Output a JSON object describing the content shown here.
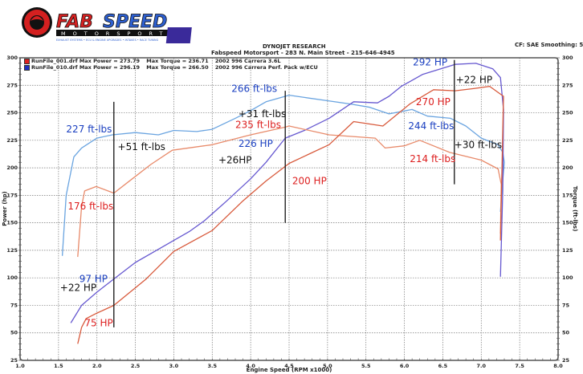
{
  "logo": {
    "brand": "FABSPEED",
    "sub": "MOTORSPORT",
    "tagline": "EXHAUST SYSTEMS • ECU & ENGINE UPGRADES • INTAKES • RACE TUNING"
  },
  "header": {
    "title": "DYNOJET RESEARCH",
    "subtitle": "Fabspeed Motorsport - 283 N. Main Street - 215-646-4945",
    "settings": "CF: SAE  Smoothing: 5"
  },
  "legend": [
    {
      "file": "RunFile_001.drf",
      "max_power": "Max Power = 273.79",
      "max_torque": "Max Torque = 236.71",
      "desc": "2002 996 Carrera 3.6L",
      "color": "#e02020"
    },
    {
      "file": "RunFile_010.drf",
      "max_power": "Max Power = 296.19",
      "max_torque": "Max Torque = 266.50",
      "desc": "2002 996 Carrera Perf. Pack w/ECU",
      "color": "#2030c0"
    }
  ],
  "chart_data": {
    "type": "line",
    "title": "",
    "xlabel": "Engine Speed (RPM x1000)",
    "ylabel": "Power (hp)",
    "y2label": "Torque (ft-lbs)",
    "xlim": [
      1.0,
      8.0
    ],
    "ylim": [
      25,
      300
    ],
    "xticks": [
      "1.0",
      "1.5",
      "2.0",
      "2.5",
      "3.0",
      "3.5",
      "4.0",
      "4.5",
      "5.0",
      "5.5",
      "6.0",
      "6.5",
      "7.0",
      "7.5",
      "8.0"
    ],
    "yticks": [
      "25",
      "50",
      "75",
      "100",
      "125",
      "150",
      "175",
      "200",
      "225",
      "250",
      "275",
      "300"
    ],
    "grid": true,
    "series": [
      {
        "color": "#6aa4e0",
        "x": [
          1.55,
          1.6,
          1.7,
          1.8,
          2.0,
          2.2,
          2.5,
          2.8,
          3.0,
          3.3,
          3.5,
          3.8,
          4.0,
          4.2,
          4.5,
          4.7,
          5.0,
          5.3,
          5.55,
          5.8,
          6.1,
          6.3,
          6.6,
          6.8,
          7.0,
          7.22,
          7.28,
          7.3,
          7.27,
          7.25
        ],
        "y": [
          120,
          175,
          210,
          218,
          227,
          230,
          232,
          230,
          234,
          233,
          235,
          245,
          252,
          260,
          266,
          264,
          261,
          258,
          255,
          249,
          253,
          247,
          245,
          238,
          227,
          221,
          214,
          205,
          180,
          160
        ]
      },
      {
        "color": "#6658d0",
        "x": [
          1.66,
          1.8,
          2.0,
          2.22,
          2.5,
          2.75,
          3.0,
          3.2,
          3.4,
          3.69,
          4.0,
          4.2,
          4.45,
          4.7,
          5.02,
          5.34,
          5.65,
          5.8,
          5.96,
          6.24,
          6.66,
          6.93,
          7.15,
          7.25,
          7.29,
          7.28,
          7.25
        ],
        "y": [
          59,
          75,
          87,
          99,
          114,
          124,
          134,
          142,
          152,
          170,
          190,
          205,
          227,
          234,
          245,
          260,
          259,
          265,
          274,
          285,
          294,
          295,
          290,
          282,
          253,
          180,
          101
        ]
      },
      {
        "color": "#e88a6a",
        "x": [
          1.75,
          1.8,
          1.84,
          1.99,
          2.22,
          2.46,
          2.7,
          2.98,
          3.5,
          4.0,
          4.45,
          4.5,
          5.02,
          5.62,
          5.75,
          6.0,
          6.2,
          6.59,
          7.0,
          7.22,
          7.26,
          7.25
        ],
        "y": [
          119,
          165,
          179,
          183,
          177,
          190,
          203,
          216,
          221,
          230,
          237,
          238,
          230,
          227,
          218,
          220,
          225,
          214,
          207,
          199,
          185,
          140
        ]
      },
      {
        "color": "#d85a3c",
        "x": [
          1.75,
          1.8,
          1.86,
          2.0,
          2.22,
          2.64,
          3.0,
          3.5,
          3.9,
          4.2,
          4.5,
          5.02,
          5.34,
          5.72,
          6.07,
          6.38,
          6.66,
          6.9,
          7.11,
          7.29,
          7.27,
          7.25
        ],
        "y": [
          40,
          55,
          63,
          68,
          75,
          99,
          124,
          143,
          170,
          188,
          204,
          221,
          242,
          238,
          258,
          271,
          270,
          272,
          274,
          265,
          200,
          134
        ]
      }
    ],
    "markers": [
      {
        "x": 2.22,
        "y_range": [
          55,
          260
        ]
      },
      {
        "x": 4.45,
        "y_range": [
          150,
          270
        ]
      },
      {
        "x": 6.65,
        "y_range": [
          185,
          298
        ]
      }
    ],
    "annotations": [
      {
        "text": "227 ft-lbs",
        "x": 1.6,
        "y": 232,
        "color": "#1a3fc0"
      },
      {
        "text": "+51 ft-lbs",
        "x": 2.27,
        "y": 216,
        "color": "#111111"
      },
      {
        "text": "176 ft-lbs",
        "x": 1.62,
        "y": 162,
        "color": "#dd2020"
      },
      {
        "text": "97 HP",
        "x": 1.77,
        "y": 96,
        "color": "#1a3fc0"
      },
      {
        "text": "+22 HP",
        "x": 1.52,
        "y": 88,
        "color": "#111111"
      },
      {
        "text": "75 HP",
        "x": 1.84,
        "y": 56,
        "color": "#dd2020"
      },
      {
        "text": "266 ft-lbs",
        "x": 3.75,
        "y": 269,
        "color": "#1a3fc0"
      },
      {
        "text": "+31 ft-lbs",
        "x": 3.84,
        "y": 246,
        "color": "#111111"
      },
      {
        "text": "235 ft-lbs",
        "x": 3.8,
        "y": 236,
        "color": "#dd2020"
      },
      {
        "text": "226 HP",
        "x": 3.84,
        "y": 219,
        "color": "#1a3fc0"
      },
      {
        "text": "+26HP",
        "x": 3.58,
        "y": 204,
        "color": "#111111"
      },
      {
        "text": "200 HP",
        "x": 4.54,
        "y": 185,
        "color": "#dd2020"
      },
      {
        "text": "292 HP",
        "x": 6.11,
        "y": 293,
        "color": "#1a3fc0"
      },
      {
        "text": "+22 HP",
        "x": 6.67,
        "y": 277,
        "color": "#111111"
      },
      {
        "text": "270 HP",
        "x": 6.15,
        "y": 257,
        "color": "#dd2020"
      },
      {
        "text": "244 ft-lbs",
        "x": 6.05,
        "y": 235,
        "color": "#1a3fc0"
      },
      {
        "text": "+30 ft-lbs",
        "x": 6.65,
        "y": 218,
        "color": "#111111"
      },
      {
        "text": "214 ft-lbs",
        "x": 6.07,
        "y": 205,
        "color": "#dd2020"
      }
    ]
  }
}
